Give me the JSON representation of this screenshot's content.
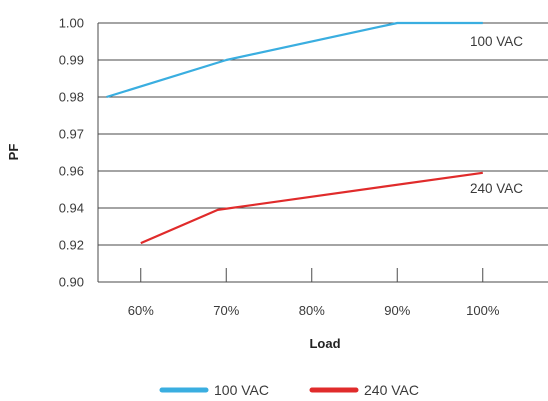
{
  "chart_data": {
    "type": "line",
    "xlabel": "Load",
    "ylabel": "PF",
    "x_ticks": [
      "60%",
      "70%",
      "80%",
      "90%",
      "100%"
    ],
    "y_ticks": [
      "1.00",
      "0.99",
      "0.98",
      "0.97",
      "0.96",
      "0.94",
      "0.92",
      "0.90"
    ],
    "grid": "horizontal",
    "legend_position": "bottom",
    "series": [
      {
        "name": "100 VAC",
        "color": "#3aaee0",
        "end_label": "100 VAC",
        "points": [
          {
            "x": "56%",
            "y": 0.98
          },
          {
            "x": "70%",
            "y": 0.99
          },
          {
            "x": "90%",
            "y": 1.0
          },
          {
            "x": "100%",
            "y": 1.0
          }
        ]
      },
      {
        "name": "240 VAC",
        "color": "#e02b2b",
        "end_label": "240 VAC",
        "points": [
          {
            "x": "60%",
            "y": 0.921
          },
          {
            "x": "69%",
            "y": 0.939
          },
          {
            "x": "100%",
            "y": 0.959
          }
        ]
      }
    ]
  }
}
